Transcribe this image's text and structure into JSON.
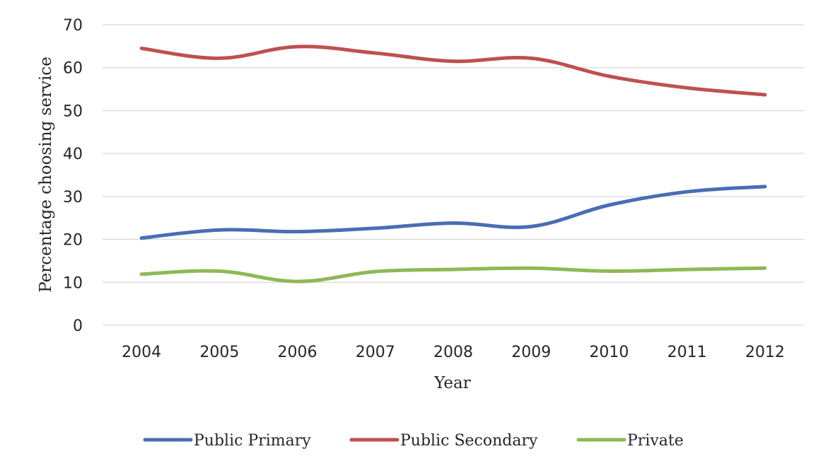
{
  "chart_data": {
    "type": "line",
    "title": "",
    "xlabel": "Year",
    "ylabel": "Percentage  choosing service",
    "categories": [
      "2004",
      "2005",
      "2006",
      "2007",
      "2008",
      "2009",
      "2010",
      "2011",
      "2012"
    ],
    "ylim": [
      0,
      70
    ],
    "yticks": [
      0,
      10,
      20,
      30,
      40,
      50,
      60,
      70
    ],
    "grid": true,
    "legend_position": "bottom",
    "series": [
      {
        "name": "Public Primary",
        "color": "#4a6db3",
        "values": [
          20.3,
          22.2,
          21.8,
          22.6,
          23.8,
          23.0,
          28.0,
          31.1,
          32.3
        ]
      },
      {
        "name": "Public Secondary",
        "color": "#c0504d",
        "values": [
          64.5,
          62.2,
          64.9,
          63.4,
          61.5,
          62.2,
          58.0,
          55.3,
          53.7
        ]
      },
      {
        "name": "Private",
        "color": "#8db955",
        "values": [
          11.9,
          12.6,
          10.2,
          12.5,
          13.0,
          13.3,
          12.6,
          13.0,
          13.3
        ]
      }
    ]
  }
}
